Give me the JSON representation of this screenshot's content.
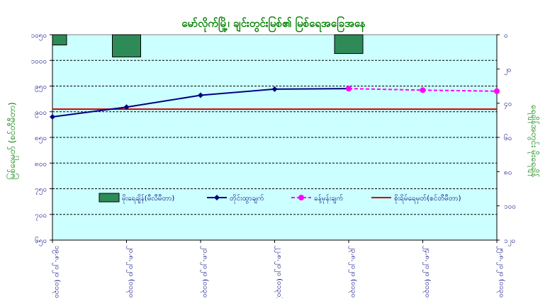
{
  "chart_data": {
    "type": "line",
    "title": "မော်လိုက်မြို့၊ ချင်းတွင်းမြစ်၏ မြစ်ရေအခြေအနေ",
    "ylabel_left": "မြစ်ရေမှတ် (စင်တီမီတာ)",
    "ylabel_right": "ရေချိန်အတွင်း မိုးရေချိန်",
    "left_axis": {
      "ylim": [
        650,
        1050
      ],
      "ticks": [
        650,
        700,
        750,
        800,
        850,
        900,
        950,
        1000,
        1050
      ],
      "tick_labels": [
        "၆၅၀",
        "၇၀၀",
        "၇၅၀",
        "၈၀၀",
        "၈၅၀",
        "၉၀၀",
        "၉၅၀",
        "၁၀၀၀",
        "၁၀၅၀"
      ]
    },
    "right_axis": {
      "ylim": [
        0,
        120
      ],
      "inverted": true,
      "ticks": [
        0,
        20,
        40,
        60,
        80,
        100,
        120
      ],
      "tick_labels": [
        "၀",
        "၂၀",
        "၄၀",
        "၆၀",
        "၈၀",
        "၁၀၀",
        "၁၂၀"
      ]
    },
    "categories": [
      "၁၉.၈.၂၀၂၀ (၀၁၃၀)",
      "၂၀.၈.၂၀၂၀ (၀၁၃၀)",
      "၂၁.၈.၂၀၂၀ (၀၁၃၀)",
      "၂၂.၈.၂၀၂၀ (၀၁၃၀)",
      "၂၃.၈.၂၀၂၀ (၀၁၃၀)",
      "၂၄.၈.၂၀၂၀ (၀၁၃၀)",
      "၂၅.၈.၂၀၂၀ (၀၁၃၀)"
    ],
    "series": [
      {
        "name": "မိုးရေချိန်(မီလီမီတာ)",
        "kind": "bar",
        "axis": "right",
        "color": "#2e8b57",
        "values": [
          6,
          13,
          null,
          null,
          11,
          null,
          null
        ]
      },
      {
        "name": "တိုင်းထွာချက်",
        "kind": "line",
        "axis": "left",
        "color": "#000080",
        "values": [
          890,
          909,
          932,
          944,
          945,
          null,
          null
        ]
      },
      {
        "name": "ခန့်မှန်းချက်",
        "kind": "line-dashed",
        "axis": "left",
        "color": "#ff00ff",
        "values": [
          null,
          null,
          null,
          null,
          945,
          942,
          940
        ]
      },
      {
        "name": "စိုးရိမ်ရေမှတ်(စင်တီမီတာ)",
        "kind": "hline",
        "axis": "left",
        "color": "#cc0000",
        "value": 905
      }
    ],
    "grid": true,
    "legend_position": "bottom-center",
    "colors": {
      "plot_background": "#ccffff",
      "title_color": "#008000",
      "axis_title_color": "#008000",
      "axis_tick_color": "#000080"
    }
  }
}
